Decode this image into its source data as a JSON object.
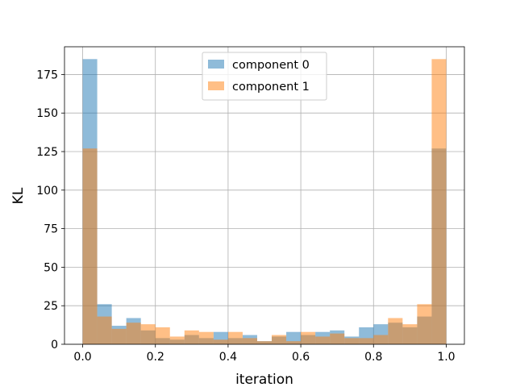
{
  "chart_data": {
    "type": "bar",
    "title": "",
    "xlabel": "iteration",
    "ylabel": "KL",
    "xlim": [
      -0.05,
      1.05
    ],
    "ylim": [
      0,
      193
    ],
    "xticks": [
      0.0,
      0.2,
      0.4,
      0.6,
      0.8,
      1.0
    ],
    "xtick_labels": [
      "0.0",
      "0.2",
      "0.4",
      "0.6",
      "0.8",
      "1.0"
    ],
    "yticks": [
      0,
      25,
      50,
      75,
      100,
      125,
      150,
      175
    ],
    "ytick_labels": [
      "0",
      "25",
      "50",
      "75",
      "100",
      "125",
      "150",
      "175"
    ],
    "grid": true,
    "legend_position": "top-center",
    "bin_edges": [
      0.0,
      0.04,
      0.08,
      0.12,
      0.16,
      0.2,
      0.24,
      0.28,
      0.32,
      0.36,
      0.4,
      0.44,
      0.48,
      0.52,
      0.56,
      0.6,
      0.64,
      0.68,
      0.72,
      0.76,
      0.8,
      0.84,
      0.88,
      0.92,
      0.96,
      1.0
    ],
    "series": [
      {
        "name": "component 0",
        "color": "#1f77b4",
        "alpha": 0.5,
        "values": [
          185,
          26,
          12,
          17,
          9,
          4,
          3,
          6,
          4,
          8,
          4,
          6,
          2,
          5,
          8,
          6,
          8,
          9,
          5,
          11,
          13,
          14,
          11,
          18,
          127
        ]
      },
      {
        "name": "component 1",
        "color": "#ff7f0e",
        "alpha": 0.5,
        "values": [
          127,
          18,
          10,
          14,
          13,
          11,
          5,
          9,
          8,
          3,
          8,
          4,
          2,
          6,
          2,
          8,
          5,
          7,
          4,
          4,
          6,
          17,
          13,
          26,
          185
        ]
      }
    ]
  }
}
